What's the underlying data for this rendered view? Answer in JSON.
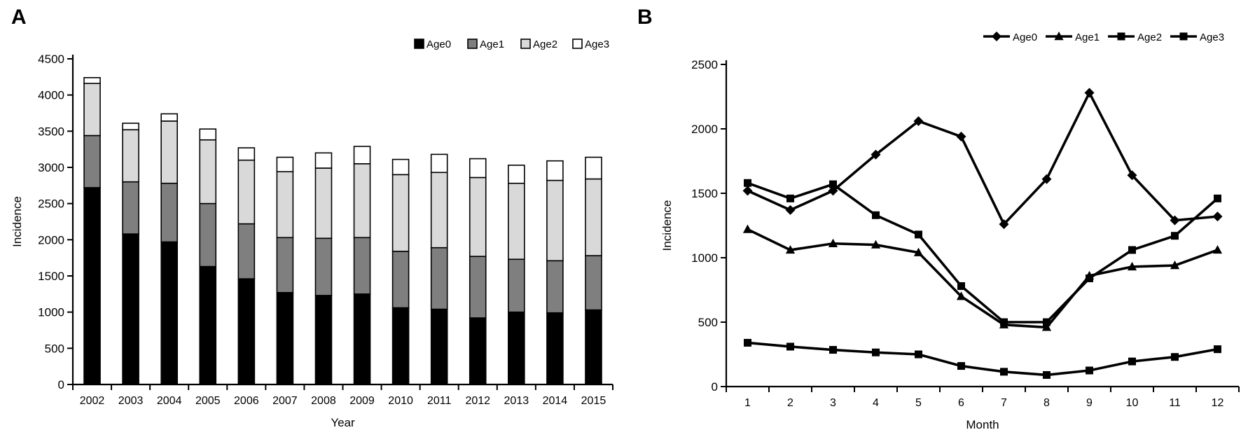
{
  "figure": {
    "panels": [
      {
        "letter": "A"
      },
      {
        "letter": "B"
      }
    ]
  },
  "colors": {
    "axis": "#000000",
    "text": "#000000",
    "age0": "#000000",
    "age1": "#7f7f7f",
    "age2": "#d9d9d9",
    "age3": "#ffffff",
    "background": "#ffffff"
  },
  "chart_data": [
    {
      "type": "bar",
      "stacked": true,
      "panel": "A",
      "xlabel": "Year",
      "ylabel": "Incidence",
      "ylim": [
        0,
        4500
      ],
      "yticks": [
        0,
        500,
        1000,
        1500,
        2000,
        2500,
        3000,
        3500,
        4000,
        4500
      ],
      "grid": false,
      "legend_position": "top-right",
      "categories": [
        "2002",
        "2003",
        "2004",
        "2005",
        "2006",
        "2007",
        "2008",
        "2009",
        "2010",
        "2011",
        "2012",
        "2013",
        "2014",
        "2015"
      ],
      "series": [
        {
          "name": "Age0",
          "color": "#000000",
          "values": [
            2720,
            2080,
            1970,
            1630,
            1460,
            1270,
            1230,
            1250,
            1060,
            1040,
            920,
            1000,
            990,
            1030
          ]
        },
        {
          "name": "Age1",
          "color": "#7f7f7f",
          "values": [
            720,
            720,
            810,
            870,
            760,
            760,
            790,
            780,
            780,
            850,
            850,
            730,
            720,
            750
          ]
        },
        {
          "name": "Age2",
          "color": "#d9d9d9",
          "values": [
            720,
            720,
            860,
            880,
            880,
            910,
            970,
            1020,
            1060,
            1040,
            1090,
            1050,
            1110,
            1060
          ]
        },
        {
          "name": "Age3",
          "color": "#ffffff",
          "values": [
            80,
            90,
            100,
            150,
            170,
            200,
            210,
            240,
            210,
            250,
            260,
            250,
            270,
            300
          ]
        }
      ]
    },
    {
      "type": "line",
      "panel": "B",
      "xlabel": "Month",
      "ylabel": "Incidence",
      "ylim": [
        0,
        2500
      ],
      "yticks": [
        0,
        500,
        1000,
        1500,
        2000,
        2500
      ],
      "grid": false,
      "legend_position": "top-right",
      "categories": [
        "1",
        "2",
        "3",
        "4",
        "5",
        "6",
        "7",
        "8",
        "9",
        "10",
        "11",
        "12"
      ],
      "series": [
        {
          "name": "Age0",
          "marker": "diamond",
          "color": "#000000",
          "values": [
            1520,
            1370,
            1520,
            1800,
            2060,
            1940,
            1260,
            1610,
            2280,
            1640,
            1290,
            1320
          ]
        },
        {
          "name": "Age1",
          "marker": "triangle",
          "color": "#000000",
          "values": [
            1220,
            1060,
            1110,
            1100,
            1040,
            700,
            480,
            460,
            860,
            930,
            940,
            1060
          ]
        },
        {
          "name": "Age2",
          "marker": "square",
          "color": "#000000",
          "values": [
            1580,
            1460,
            1570,
            1330,
            1180,
            780,
            500,
            500,
            840,
            1060,
            1170,
            1460
          ]
        },
        {
          "name": "Age3",
          "marker": "square",
          "color": "#000000",
          "values": [
            340,
            310,
            285,
            265,
            250,
            160,
            115,
            90,
            125,
            195,
            230,
            290
          ]
        }
      ]
    }
  ]
}
